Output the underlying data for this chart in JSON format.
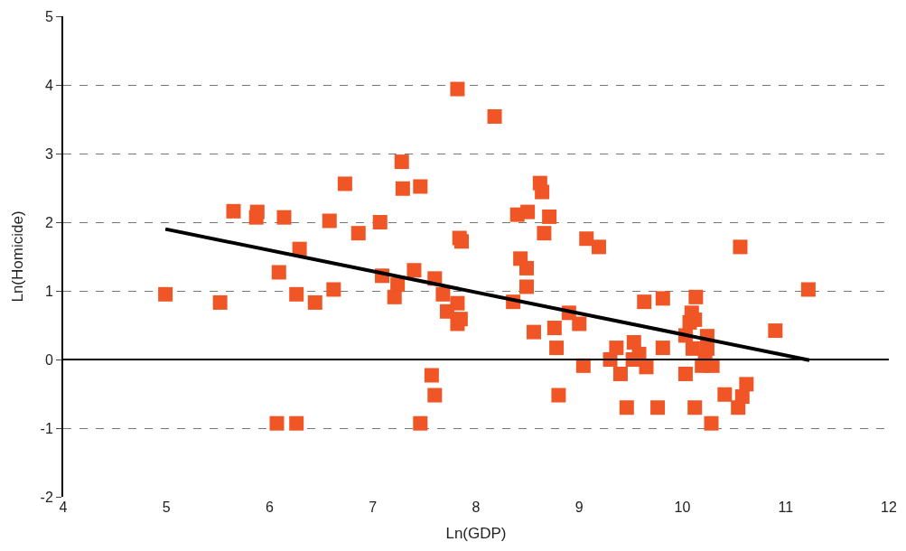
{
  "chart_data": {
    "type": "scatter",
    "xlabel": "Ln(GDP)",
    "ylabel": "Ln(Homicide)",
    "xlim": [
      4,
      12
    ],
    "xticks": [
      4,
      5,
      6,
      7,
      8,
      9,
      10,
      11,
      12
    ],
    "ylim": [
      -2,
      5
    ],
    "yticks": [
      -2,
      -1,
      0,
      1,
      2,
      3,
      4,
      5
    ],
    "grid": "y",
    "ref_lines": [
      {
        "axis": "y",
        "value": 0,
        "color": "#000000",
        "line_style": "solid"
      }
    ],
    "series": [
      {
        "color": "#f05526",
        "marker": "square",
        "x": [
          4.99,
          5.52,
          5.65,
          5.87,
          5.88,
          6.07,
          6.09,
          6.14,
          6.26,
          6.26,
          6.29,
          6.44,
          6.58,
          6.62,
          6.73,
          6.86,
          7.07,
          7.09,
          7.21,
          7.24,
          7.28,
          7.29,
          7.46,
          7.4,
          7.46,
          7.57,
          7.6,
          7.6,
          7.68,
          7.72,
          7.82,
          7.82,
          7.82,
          7.84,
          7.86,
          7.85,
          8.18,
          8.36,
          8.4,
          8.43,
          8.5,
          8.49,
          8.49,
          8.56,
          8.62,
          8.64,
          8.66,
          8.71,
          8.76,
          8.78,
          8.8,
          8.9,
          9.0,
          9.07,
          9.19,
          9.04,
          9.3,
          9.36,
          9.4,
          9.46,
          9.53,
          9.52,
          9.58,
          9.63,
          9.65,
          9.76,
          9.81,
          9.81,
          10.03,
          10.03,
          10.07,
          10.09,
          10.1,
          10.12,
          10.13,
          10.12,
          10.19,
          10.22,
          10.24,
          10.24,
          10.29,
          10.28,
          10.41,
          10.54,
          10.56,
          10.58,
          10.62,
          10.9,
          11.22
        ],
        "values": [
          0.95,
          0.83,
          2.16,
          2.07,
          2.15,
          -0.93,
          1.27,
          2.07,
          -0.93,
          0.95,
          1.61,
          0.83,
          2.02,
          1.02,
          2.56,
          1.84,
          2.0,
          1.22,
          0.91,
          1.09,
          2.88,
          2.49,
          2.52,
          1.3,
          -0.93,
          -0.23,
          -0.52,
          1.18,
          0.95,
          0.7,
          3.94,
          0.82,
          0.52,
          1.77,
          1.72,
          0.59,
          3.54,
          0.84,
          2.11,
          1.47,
          2.15,
          1.33,
          1.06,
          0.4,
          2.57,
          2.44,
          1.84,
          2.08,
          0.46,
          0.17,
          -0.52,
          0.68,
          0.52,
          1.76,
          1.64,
          -0.09,
          0.0,
          0.17,
          -0.21,
          -0.7,
          0.25,
          0.0,
          0.08,
          0.84,
          -0.11,
          -0.7,
          0.89,
          0.17,
          -0.21,
          0.35,
          0.54,
          0.68,
          0.16,
          -0.7,
          0.91,
          0.58,
          -0.09,
          0.0,
          0.34,
          0.16,
          -0.09,
          -0.93,
          -0.51,
          -0.7,
          1.64,
          -0.54,
          -0.36,
          0.42,
          1.02
        ]
      },
      {
        "type": "line",
        "color": "#000000",
        "marker": "none",
        "line_style": "solid",
        "x": [
          4.99,
          11.23
        ],
        "values": [
          1.9,
          -0.01
        ]
      }
    ]
  }
}
